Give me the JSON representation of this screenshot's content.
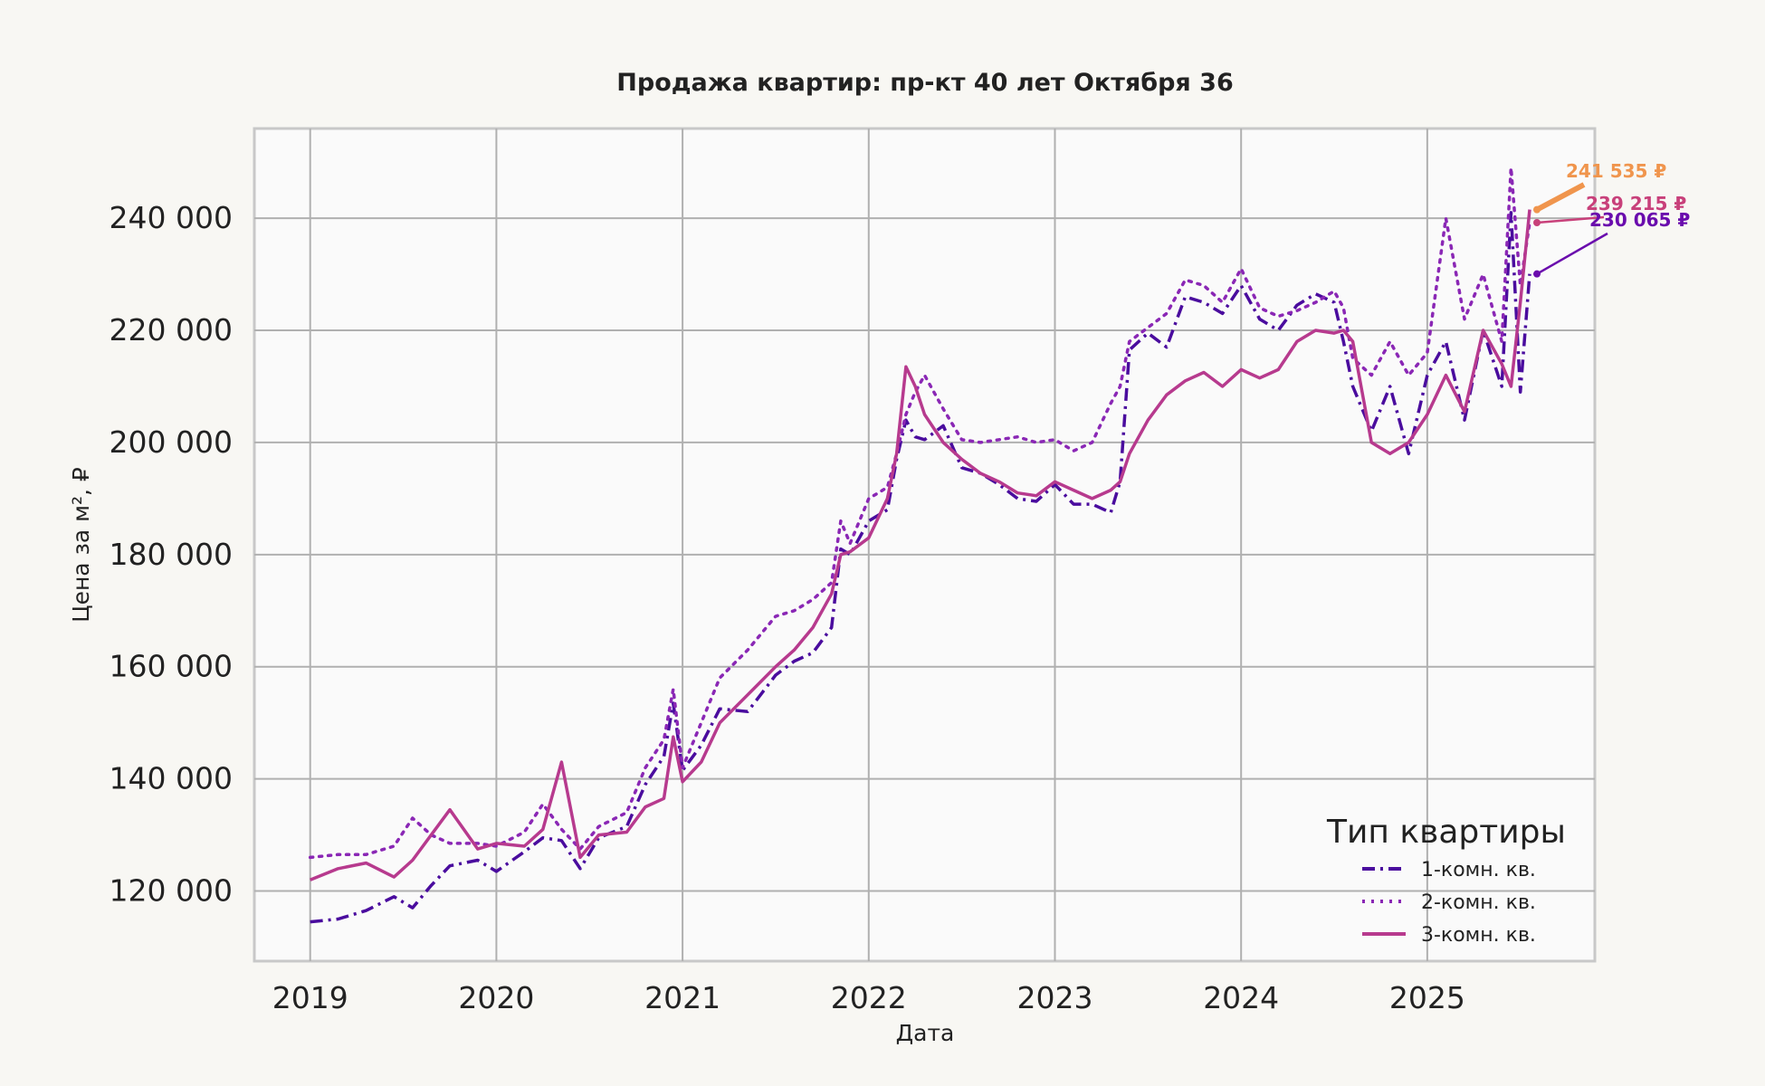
{
  "chart_data": {
    "type": "line",
    "title": "Продажа квартир: пр-кт 40 лет Октября 36",
    "xlabel": "Дата",
    "ylabel": "Цена за м², ₽",
    "x_ticks": [
      "2019",
      "2020",
      "2021",
      "2022",
      "2023",
      "2024",
      "2025"
    ],
    "y_ticks": [
      "120 000",
      "140 000",
      "160 000",
      "180 000",
      "200 000",
      "220 000",
      "240 000"
    ],
    "xlim": [
      2018.7,
      2025.9
    ],
    "ylim": [
      107500,
      256000
    ],
    "grid": true,
    "legend": {
      "title": "Тип квартиры",
      "position": "bottom-right"
    },
    "x_unit": "year",
    "series": [
      {
        "name": "1-комн. кв.",
        "color": "#4a0c9e",
        "style": "dashdot",
        "x": [
          2019.0,
          2019.15,
          2019.3,
          2019.45,
          2019.55,
          2019.65,
          2019.75,
          2019.9,
          2020.0,
          2020.15,
          2020.25,
          2020.35,
          2020.45,
          2020.55,
          2020.7,
          2020.8,
          2020.9,
          2020.95,
          2021.0,
          2021.1,
          2021.2,
          2021.35,
          2021.5,
          2021.6,
          2021.7,
          2021.8,
          2021.85,
          2021.9,
          2022.0,
          2022.1,
          2022.15,
          2022.2,
          2022.25,
          2022.3,
          2022.4,
          2022.5,
          2022.6,
          2022.7,
          2022.8,
          2022.9,
          2023.0,
          2023.1,
          2023.2,
          2023.3,
          2023.35,
          2023.4,
          2023.5,
          2023.6,
          2023.7,
          2023.8,
          2023.9,
          2024.0,
          2024.1,
          2024.2,
          2024.3,
          2024.4,
          2024.5,
          2024.55,
          2024.6,
          2024.7,
          2024.8,
          2024.9,
          2025.0,
          2025.1,
          2025.2,
          2025.3,
          2025.4,
          2025.45,
          2025.5,
          2025.55
        ],
        "y": [
          114500,
          115000,
          116500,
          119000,
          117000,
          121000,
          124500,
          125500,
          123500,
          127000,
          129500,
          129000,
          124000,
          129500,
          131500,
          139000,
          144000,
          153500,
          141500,
          146000,
          152500,
          152000,
          158500,
          161000,
          162500,
          167000,
          181000,
          180000,
          186000,
          188000,
          197000,
          204000,
          201000,
          200500,
          203000,
          195500,
          194500,
          192500,
          190000,
          189500,
          192500,
          189000,
          189000,
          187500,
          193000,
          216500,
          219500,
          217000,
          226000,
          225000,
          223000,
          228000,
          222000,
          220000,
          224500,
          226500,
          225000,
          218000,
          210000,
          202000,
          210000,
          198000,
          212000,
          218000,
          204000,
          220000,
          210000,
          241000,
          209000,
          230065
        ]
      },
      {
        "name": "2-комн. кв.",
        "color": "#8a27b5",
        "style": "dotted",
        "x": [
          2019.0,
          2019.15,
          2019.3,
          2019.45,
          2019.55,
          2019.65,
          2019.75,
          2019.9,
          2020.0,
          2020.15,
          2020.25,
          2020.35,
          2020.45,
          2020.55,
          2020.7,
          2020.8,
          2020.9,
          2020.95,
          2021.0,
          2021.1,
          2021.2,
          2021.35,
          2021.5,
          2021.6,
          2021.7,
          2021.8,
          2021.85,
          2021.9,
          2022.0,
          2022.1,
          2022.15,
          2022.2,
          2022.25,
          2022.3,
          2022.4,
          2022.5,
          2022.6,
          2022.7,
          2022.8,
          2022.9,
          2023.0,
          2023.1,
          2023.2,
          2023.3,
          2023.35,
          2023.4,
          2023.5,
          2023.6,
          2023.7,
          2023.8,
          2023.9,
          2024.0,
          2024.1,
          2024.2,
          2024.3,
          2024.4,
          2024.5,
          2024.55,
          2024.6,
          2024.7,
          2024.8,
          2024.9,
          2025.0,
          2025.1,
          2025.2,
          2025.3,
          2025.4,
          2025.45,
          2025.5,
          2025.55
        ],
        "y": [
          126000,
          126500,
          126500,
          128000,
          133000,
          130000,
          128500,
          128500,
          128000,
          130500,
          135500,
          131000,
          127500,
          131500,
          134000,
          142000,
          147000,
          156000,
          142000,
          150000,
          158000,
          163000,
          169000,
          170000,
          172000,
          175000,
          186000,
          182000,
          190000,
          192000,
          198000,
          205000,
          209000,
          212000,
          206000,
          200500,
          200000,
          200500,
          201000,
          200000,
          200500,
          198500,
          200000,
          207000,
          210000,
          218000,
          220500,
          223000,
          229000,
          228000,
          225000,
          231000,
          224000,
          222500,
          223500,
          225000,
          227000,
          224000,
          215000,
          212000,
          218000,
          212000,
          216000,
          240000,
          222000,
          230000,
          218000,
          249000,
          228000,
          239215
        ]
      },
      {
        "name": "3-комн. кв.",
        "color": "#b73a8e",
        "style": "solid",
        "x": [
          2019.0,
          2019.15,
          2019.3,
          2019.45,
          2019.55,
          2019.65,
          2019.75,
          2019.9,
          2020.0,
          2020.15,
          2020.25,
          2020.35,
          2020.45,
          2020.55,
          2020.7,
          2020.8,
          2020.9,
          2020.95,
          2021.0,
          2021.1,
          2021.2,
          2021.35,
          2021.5,
          2021.6,
          2021.7,
          2021.8,
          2021.85,
          2021.9,
          2022.0,
          2022.1,
          2022.15,
          2022.2,
          2022.25,
          2022.3,
          2022.4,
          2022.5,
          2022.6,
          2022.7,
          2022.8,
          2022.9,
          2023.0,
          2023.1,
          2023.2,
          2023.3,
          2023.35,
          2023.4,
          2023.5,
          2023.6,
          2023.7,
          2023.8,
          2023.9,
          2024.0,
          2024.1,
          2024.2,
          2024.3,
          2024.4,
          2024.5,
          2024.55,
          2024.6,
          2024.7,
          2024.8,
          2024.9,
          2025.0,
          2025.1,
          2025.2,
          2025.3,
          2025.4,
          2025.45,
          2025.5,
          2025.55
        ],
        "y": [
          122000,
          124000,
          125000,
          122500,
          125500,
          130000,
          134500,
          127500,
          128500,
          128000,
          131000,
          143000,
          126000,
          130000,
          130500,
          135000,
          136500,
          147500,
          139500,
          143000,
          150000,
          155000,
          160000,
          163000,
          167000,
          173000,
          180000,
          180500,
          183000,
          190000,
          198000,
          213500,
          210000,
          205000,
          200000,
          197000,
          194500,
          193000,
          191000,
          190500,
          193000,
          191500,
          190000,
          191500,
          193000,
          198000,
          204000,
          208500,
          211000,
          212500,
          210000,
          213000,
          211500,
          213000,
          218000,
          220000,
          219500,
          220000,
          218000,
          200000,
          198000,
          200000,
          205000,
          212000,
          205500,
          220000,
          214000,
          210000,
          225000,
          241535
        ]
      }
    ],
    "annotations": [
      {
        "text": "241 535 ₽",
        "color": "#f0954d",
        "series": "3-комн. кв."
      },
      {
        "text": "239 215 ₽",
        "color": "#c8407a",
        "series": "2-комн. кв."
      },
      {
        "text": "230 065 ₽",
        "color": "#6a0cad",
        "series": "1-комн. кв."
      }
    ]
  }
}
